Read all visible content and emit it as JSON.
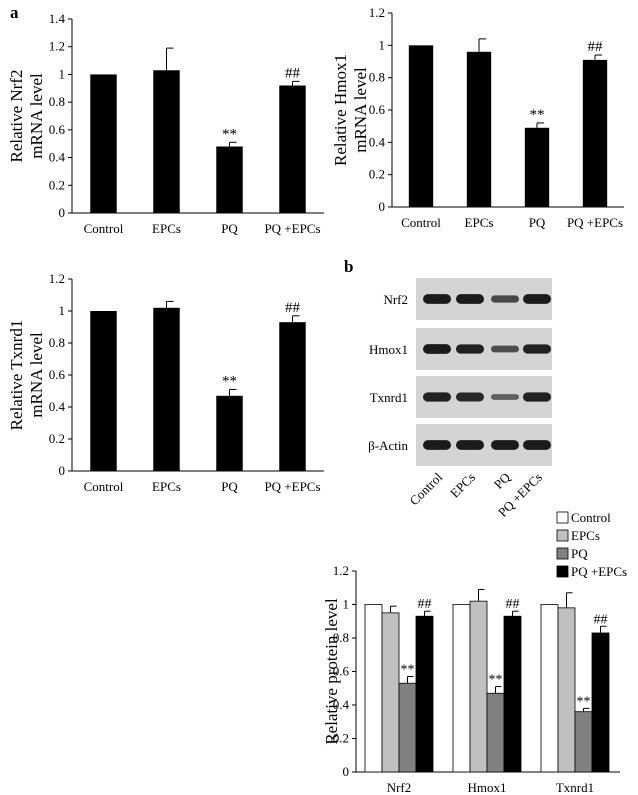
{
  "panel_labels": {
    "a": "a",
    "b": "b"
  },
  "colors": {
    "control": "#ffffff",
    "epcs": "#c0c0c0",
    "pq": "#808080",
    "pq_epcs": "#000000",
    "blot_bg": "#d4d4d4",
    "band": "#151515"
  },
  "chart_data": [
    {
      "id": "nrf2_mrna",
      "type": "bar",
      "categories": [
        "Control",
        "EPCs",
        "PQ",
        "PQ +EPCs"
      ],
      "values": [
        1.0,
        1.03,
        0.48,
        0.92
      ],
      "errors": [
        0,
        0.16,
        0.03,
        0.03
      ],
      "annotations": [
        "",
        "",
        "**",
        "##"
      ],
      "ylabel": [
        "Relative Nrf2",
        "mRNA level"
      ],
      "ylim": [
        0,
        1.4
      ],
      "yticks": [
        "0",
        "0.2",
        "0.4",
        "0.6",
        "0.8",
        "1",
        "1.2",
        "1.4"
      ],
      "grid": false
    },
    {
      "id": "hmox1_mrna",
      "type": "bar",
      "categories": [
        "Control",
        "EPCs",
        "PQ",
        "PQ +EPCs"
      ],
      "values": [
        1.0,
        0.96,
        0.49,
        0.91
      ],
      "errors": [
        0,
        0.08,
        0.03,
        0.03
      ],
      "annotations": [
        "",
        "",
        "**",
        "##"
      ],
      "ylabel": [
        "Relative Hmox1",
        "mRNA level"
      ],
      "ylim": [
        0,
        1.2
      ],
      "yticks": [
        "0",
        "0.2",
        "0.4",
        "0.6",
        "0.8",
        "1",
        "1.2"
      ],
      "grid": false
    },
    {
      "id": "txnrd1_mrna",
      "type": "bar",
      "categories": [
        "Control",
        "EPCs",
        "PQ",
        "PQ +EPCs"
      ],
      "values": [
        1.0,
        1.02,
        0.47,
        0.93
      ],
      "errors": [
        0,
        0.04,
        0.04,
        0.04
      ],
      "annotations": [
        "",
        "",
        "**",
        "##"
      ],
      "ylabel": [
        "Relative Txnrd1",
        "mRNA level"
      ],
      "ylim": [
        0,
        1.2
      ],
      "yticks": [
        "0",
        "0.2",
        "0.4",
        "0.6",
        "0.8",
        "1",
        "1.2"
      ],
      "grid": false
    },
    {
      "id": "protein_levels",
      "type": "bar",
      "categories": [
        "Nrf2",
        "Hmox1",
        "Txnrd1"
      ],
      "series": [
        {
          "name": "Control",
          "values": [
            1.0,
            1.0,
            1.0
          ],
          "errors": [
            0,
            0,
            0
          ]
        },
        {
          "name": "EPCs",
          "values": [
            0.95,
            1.02,
            0.98
          ],
          "errors": [
            0.04,
            0.07,
            0.09
          ]
        },
        {
          "name": "PQ",
          "values": [
            0.53,
            0.47,
            0.36
          ],
          "errors": [
            0.04,
            0.04,
            0.02
          ]
        },
        {
          "name": "PQ +EPCs",
          "values": [
            0.93,
            0.93,
            0.83
          ],
          "errors": [
            0.03,
            0.03,
            0.04
          ]
        }
      ],
      "annotations": {
        "PQ": "**",
        "PQ +EPCs": "##"
      },
      "ylabel": "Relative protein level",
      "ylim": [
        0,
        1.2
      ],
      "yticks": [
        "0",
        "0.2",
        "0.4",
        "0.6",
        "0.8",
        "1",
        "1.2"
      ],
      "legend_position": "top-right",
      "grid": false
    }
  ],
  "blot": {
    "rows": [
      {
        "label": "Nrf2",
        "intensity": [
          0.95,
          0.95,
          0.6,
          0.95
        ]
      },
      {
        "label": "Hmox1",
        "intensity": [
          0.95,
          0.9,
          0.55,
          0.9
        ]
      },
      {
        "label": "Txnrd1",
        "intensity": [
          0.9,
          0.85,
          0.4,
          0.9
        ]
      },
      {
        "label": "β-Actin",
        "intensity": [
          0.95,
          0.95,
          0.95,
          0.95
        ]
      }
    ],
    "lanes": [
      "Control",
      "EPCs",
      "PQ",
      "PQ +EPCs"
    ]
  }
}
